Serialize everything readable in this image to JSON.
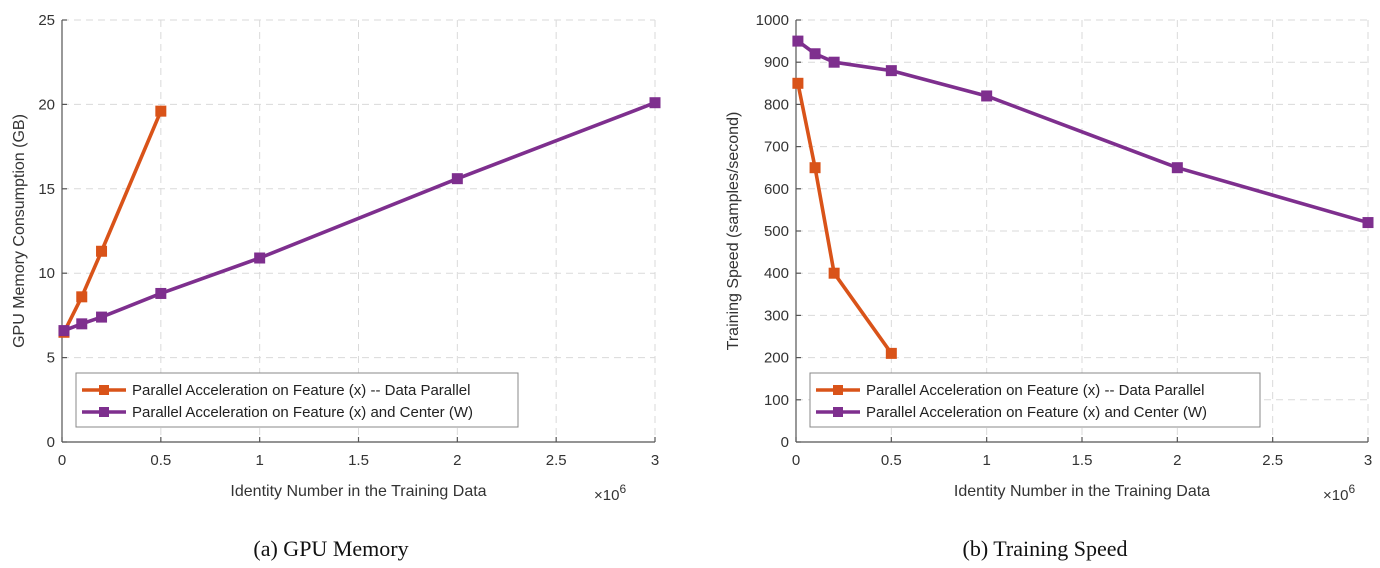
{
  "chart_data": [
    {
      "type": "line",
      "caption": "(a)  GPU Memory",
      "xlabel": "Identity Number in the Training Data",
      "ylabel": "GPU Memory Consumption (GB)",
      "xlim": [
        0,
        3
      ],
      "ylim": [
        0,
        25
      ],
      "x_ticks": [
        0,
        0.5,
        1,
        1.5,
        2,
        2.5,
        3
      ],
      "x_tick_labels": [
        "0",
        "0.5",
        "1",
        "1.5",
        "2",
        "2.5",
        "3"
      ],
      "y_ticks": [
        0,
        5,
        10,
        15,
        20,
        25
      ],
      "y_tick_labels": [
        "0",
        "5",
        "10",
        "15",
        "20",
        "25"
      ],
      "x_multiplier_base": "×10",
      "x_multiplier_exp": "6",
      "grid": true,
      "legend_position": "bottom-left",
      "series": [
        {
          "name": "Parallel Acceleration on Feature (x) -- Data Parallel",
          "color": "#D95319",
          "x": [
            0.01,
            0.1,
            0.2,
            0.5
          ],
          "y": [
            6.5,
            8.6,
            11.3,
            19.6
          ]
        },
        {
          "name": "Parallel Acceleration on Feature (x) and Center (W)",
          "color": "#7E2F8E",
          "x": [
            0.01,
            0.1,
            0.2,
            0.5,
            1,
            2,
            3
          ],
          "y": [
            6.6,
            7.0,
            7.4,
            8.8,
            10.9,
            15.6,
            20.1
          ]
        }
      ]
    },
    {
      "type": "line",
      "caption": "(b)  Training Speed",
      "xlabel": "Identity Number in the Training Data",
      "ylabel": "Training Speed (samples/second)",
      "xlim": [
        0,
        3
      ],
      "ylim": [
        0,
        1000
      ],
      "x_ticks": [
        0,
        0.5,
        1,
        1.5,
        2,
        2.5,
        3
      ],
      "x_tick_labels": [
        "0",
        "0.5",
        "1",
        "1.5",
        "2",
        "2.5",
        "3"
      ],
      "y_ticks": [
        0,
        100,
        200,
        300,
        400,
        500,
        600,
        700,
        800,
        900,
        1000
      ],
      "y_tick_labels": [
        "0",
        "100",
        "200",
        "300",
        "400",
        "500",
        "600",
        "700",
        "800",
        "900",
        "1000"
      ],
      "x_multiplier_base": "×10",
      "x_multiplier_exp": "6",
      "grid": true,
      "legend_position": "bottom-left",
      "series": [
        {
          "name": "Parallel Acceleration on Feature (x) -- Data Parallel",
          "color": "#D95319",
          "x": [
            0.01,
            0.1,
            0.2,
            0.5
          ],
          "y": [
            850,
            650,
            400,
            210
          ]
        },
        {
          "name": "Parallel Acceleration on Feature (x) and Center (W)",
          "color": "#7E2F8E",
          "x": [
            0.01,
            0.1,
            0.2,
            0.5,
            1,
            2,
            3
          ],
          "y": [
            950,
            920,
            900,
            880,
            820,
            650,
            520
          ]
        }
      ]
    }
  ]
}
